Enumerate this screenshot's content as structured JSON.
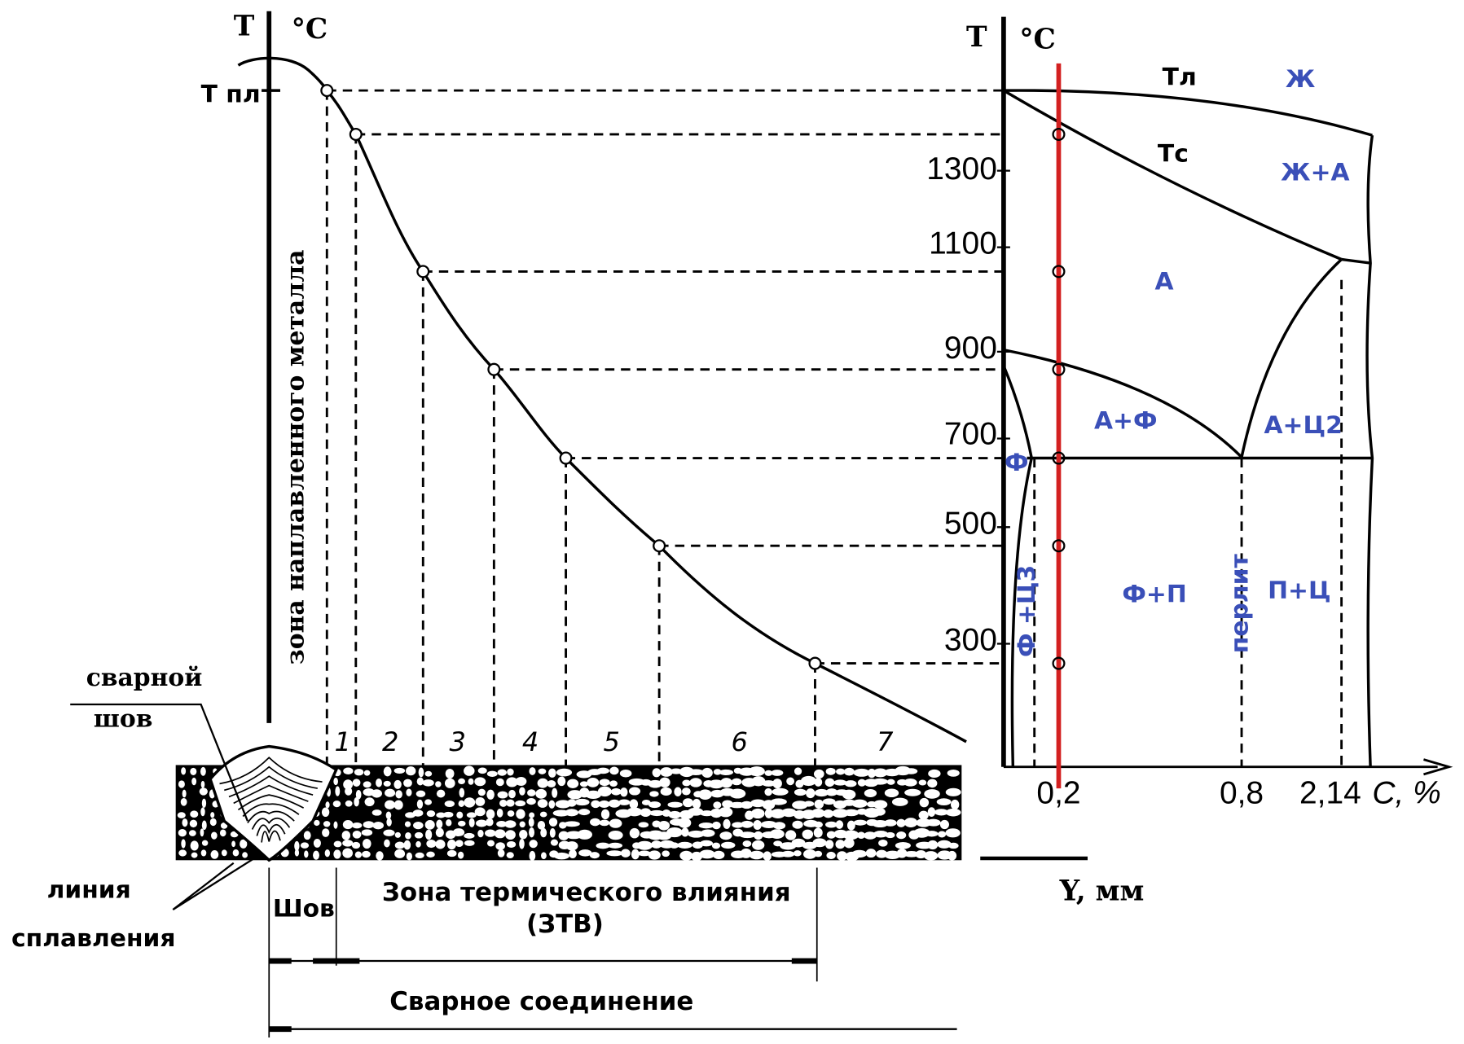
{
  "left_axis": {
    "t": "T",
    "unit": "°C",
    "t_melt": "Т пл"
  },
  "vertical_label": "зона наплавленного металла",
  "zones": [
    "1",
    "2",
    "3",
    "4",
    "5",
    "6",
    "7"
  ],
  "weld_label": [
    "сварной",
    "шов"
  ],
  "fusion_label": [
    "линия",
    "сплавления"
  ],
  "seam": "Шов",
  "haz": [
    "Зона термического влияния",
    "(ЗТВ)"
  ],
  "joint": "Сварное соединение",
  "y_axis_label": "Y, мм",
  "phase": {
    "t": "T",
    "unit": "°C",
    "temp_ticks": [
      "1300",
      "1100",
      "900",
      "700",
      "500",
      "300"
    ],
    "carbon_ticks": [
      "0,2",
      "0,8",
      "2,14"
    ],
    "x_label": "C, %",
    "regions": [
      "Тл",
      "Ж",
      "Тс",
      "Ж+А",
      "А",
      "А+Ф",
      "А+Ц2",
      "Ф",
      "Ф+П",
      "П+Ц"
    ],
    "vertical_regions": [
      "Ф +Ц3",
      "перлит"
    ]
  }
}
